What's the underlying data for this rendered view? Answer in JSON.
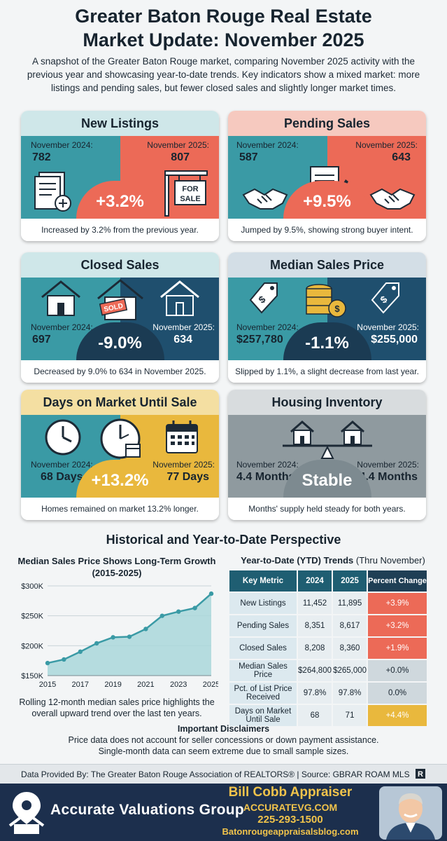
{
  "header": {
    "title_line1": "Greater Baton Rouge Real Estate",
    "title_line2": "Market Update: November 2025",
    "intro": "A snapshot of the Greater Baton Rouge market, comparing November 2025 activity with the previous year and showcasing year-to-date trends. Key indicators show a mixed market: more listings and pending sales, but fewer closed sales and slightly longer market times."
  },
  "cards": {
    "new_listings": {
      "title": "New Listings",
      "left_label": "November 2024:",
      "left_value": "782",
      "right_label": "November 2025:",
      "right_value": "807",
      "change": "+3.2%",
      "sign_text_1": "FOR",
      "sign_text_2": "SALE",
      "caption": "Increased by 3.2% from the previous year."
    },
    "pending_sales": {
      "title": "Pending Sales",
      "left_label": "November 2024:",
      "left_value": "587",
      "right_label": "November 2025:",
      "right_value": "643",
      "change": "+9.5%",
      "caption": "Jumped by 9.5%, showing strong buyer intent."
    },
    "closed_sales": {
      "title": "Closed Sales",
      "left_label": "November 2024:",
      "left_value": "697",
      "right_label": "November 2025:",
      "right_value": "634",
      "change": "-9.0%",
      "sold_text": "SOLD",
      "caption": "Decreased by 9.0% to 634 in November 2025."
    },
    "median_price": {
      "title": "Median Sales Price",
      "left_label": "November 2024:",
      "left_value": "$257,780",
      "right_label": "November 2025:",
      "right_value": "$255,000",
      "change": "-1.1%",
      "caption": "Slipped by 1.1%, a slight decrease from last year."
    },
    "days_on_market": {
      "title": "Days on Market Until Sale",
      "left_label": "November 2024:",
      "left_value": "68 Days",
      "right_label": "November 2025:",
      "right_value": "77 Days",
      "change": "+13.2%",
      "caption": "Homes remained on market 13.2% longer."
    },
    "inventory": {
      "title": "Housing Inventory",
      "left_label": "November 2024:",
      "left_value": "4.4 Months",
      "right_label": "November 2025:",
      "right_value": "4.4 Months",
      "change": "Stable",
      "caption": "Months' supply held steady for both years."
    }
  },
  "perspective": {
    "title": "Historical and Year-to-Date Perspective",
    "chart_title": "Median Sales Price Shows Long-Term Growth (2015-2025)",
    "chart_caption": "Rolling 12-month median sales price highlights the overall upward trend over the last ten years.",
    "ytd_title_bold": "Year-to-Date (YTD) Trends",
    "ytd_title_rest": " (Thru November)",
    "ytd_headers": [
      "Key Metric",
      "2024",
      "2025",
      "Percent Change"
    ],
    "ytd_rows": [
      {
        "metric": "New Listings",
        "y2024": "11,452",
        "y2025": "11,895",
        "change": "+3.9%",
        "tone": "up"
      },
      {
        "metric": "Pending Sales",
        "y2024": "8,351",
        "y2025": "8,617",
        "change": "+3.2%",
        "tone": "up"
      },
      {
        "metric": "Closed Sales",
        "y2024": "8,208",
        "y2025": "8,360",
        "change": "+1.9%",
        "tone": "up"
      },
      {
        "metric": "Median Sales Price",
        "y2024": "$264,800",
        "y2025": "$265,000",
        "change": "+0.0%",
        "tone": "flat"
      },
      {
        "metric": "Pct. of List Price Received",
        "y2024": "97.8%",
        "y2025": "97.8%",
        "change": "0.0%",
        "tone": "flat"
      },
      {
        "metric": "Days on Market Until Sale",
        "y2024": "68",
        "y2025": "71",
        "change": "+4.4%",
        "tone": "yl"
      }
    ]
  },
  "chart_data": {
    "type": "area",
    "title": "Median Sales Price Shows Long-Term Growth (2015-2025)",
    "xlabel": "",
    "ylabel": "",
    "x": [
      2015,
      2016,
      2017,
      2018,
      2019,
      2020,
      2021,
      2022,
      2023,
      2024,
      2025
    ],
    "x_tick_labels": [
      "2015",
      "2017",
      "2019",
      "2021",
      "2023",
      "2025"
    ],
    "y_tick_labels": [
      "$150K",
      "$200K",
      "$250K",
      "$300K"
    ],
    "y_ticks": [
      150000,
      200000,
      250000,
      300000
    ],
    "values": [
      171000,
      177000,
      190000,
      204000,
      214000,
      215000,
      228000,
      250000,
      257000,
      263000,
      287000
    ],
    "ylim": [
      150000,
      300000
    ],
    "grid": true,
    "colors": {
      "line": "#3a9aa5",
      "fill": "#a9d7da"
    }
  },
  "disclaimers": {
    "heading": "Important Disclaimers",
    "line1": "Price data does not account for seller concessions or down payment assistance.",
    "line2": "Single-month data can seem extreme due to small sample sizes."
  },
  "source": "Data Provided By: The Greater Baton Rouge Association of REALTORS® | Source: GBRAR ROAM MLS",
  "footer": {
    "company": "Accurate Valuations Group",
    "appraiser": "Bill Cobb Appraiser",
    "website": "ACCURATEVG.COM",
    "phone": "225-293-1500",
    "blog": "Batonrougeappraisalsblog.com"
  },
  "palette": {
    "teal": "#3a9aa5",
    "coral": "#ec6a57",
    "navy": "#1f4f6e",
    "gold": "#e9b83d",
    "gray": "#8f9a9f"
  }
}
